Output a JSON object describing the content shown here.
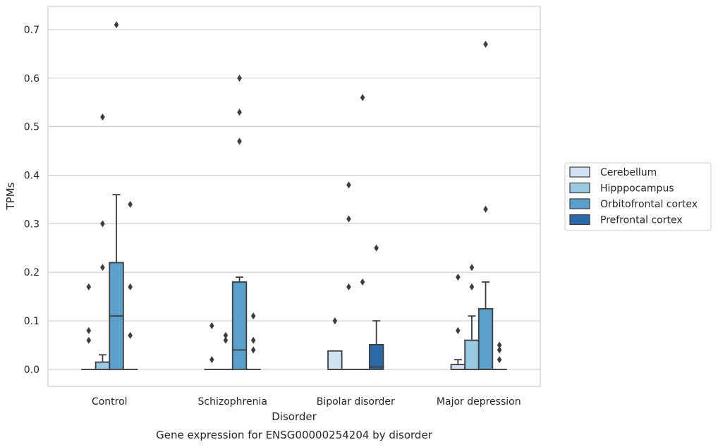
{
  "chart_data": {
    "type": "box",
    "title": "",
    "caption": "Gene expression for ENSG00000254204 by disorder",
    "xlabel": "Disorder",
    "ylabel": "TPMs",
    "ylim": [
      -0.035,
      0.748
    ],
    "yticks": [
      "0.0",
      "0.1",
      "0.2",
      "0.3",
      "0.4",
      "0.5",
      "0.6",
      "0.7"
    ],
    "grid": "horizontal",
    "legend_placement": "right",
    "categories": [
      "Control",
      "Schizophrenia",
      "Bipolar disorder",
      "Major depression"
    ],
    "series": [
      {
        "name": "Cerebellum",
        "color": "#d1e2f2",
        "boxes": [
          {
            "category": "Control",
            "q1": 0.0,
            "median": 0.0,
            "q3": 0.0,
            "whisker_low": 0.0,
            "whisker_high": 0.0,
            "outliers": [
              0.17,
              0.08,
              0.06
            ]
          },
          {
            "category": "Schizophrenia",
            "q1": 0.0,
            "median": 0.0,
            "q3": 0.0,
            "whisker_low": 0.0,
            "whisker_high": 0.0,
            "outliers": [
              0.09,
              0.02
            ]
          },
          {
            "category": "Bipolar disorder",
            "q1": 0.0,
            "median": 0.0,
            "q3": 0.038,
            "whisker_low": 0.0,
            "whisker_high": 0.038,
            "outliers": [
              0.1
            ]
          },
          {
            "category": "Major depression",
            "q1": 0.0,
            "median": 0.0,
            "q3": 0.01,
            "whisker_low": 0.0,
            "whisker_high": 0.02,
            "outliers": [
              0.19,
              0.08
            ]
          }
        ]
      },
      {
        "name": "Hipppocampus",
        "color": "#9ac8e0",
        "boxes": [
          {
            "category": "Control",
            "q1": 0.0,
            "median": 0.0,
            "q3": 0.015,
            "whisker_low": 0.0,
            "whisker_high": 0.03,
            "outliers": [
              0.52,
              0.3,
              0.21
            ]
          },
          {
            "category": "Schizophrenia",
            "q1": 0.0,
            "median": 0.0,
            "q3": 0.0,
            "whisker_low": 0.0,
            "whisker_high": 0.0,
            "outliers": [
              0.07,
              0.06
            ]
          },
          {
            "category": "Bipolar disorder",
            "q1": 0.0,
            "median": 0.0,
            "q3": 0.0,
            "whisker_low": 0.0,
            "whisker_high": 0.0,
            "outliers": [
              0.38,
              0.31,
              0.17
            ]
          },
          {
            "category": "Major depression",
            "q1": 0.0,
            "median": 0.0,
            "q3": 0.06,
            "whisker_low": 0.0,
            "whisker_high": 0.11,
            "outliers": [
              0.21,
              0.17
            ]
          }
        ]
      },
      {
        "name": "Orbitofrontal cortex",
        "color": "#5b9fcb",
        "boxes": [
          {
            "category": "Control",
            "q1": 0.0,
            "median": 0.11,
            "q3": 0.22,
            "whisker_low": 0.0,
            "whisker_high": 0.36,
            "outliers": [
              0.71
            ]
          },
          {
            "category": "Schizophrenia",
            "q1": 0.0,
            "median": 0.04,
            "q3": 0.18,
            "whisker_low": 0.0,
            "whisker_high": 0.19,
            "outliers": [
              0.6,
              0.53,
              0.47
            ]
          },
          {
            "category": "Bipolar disorder",
            "q1": 0.0,
            "median": 0.0,
            "q3": 0.0,
            "whisker_low": 0.0,
            "whisker_high": 0.0,
            "outliers": [
              0.56,
              0.18
            ]
          },
          {
            "category": "Major depression",
            "q1": 0.0,
            "median": 0.0,
            "q3": 0.125,
            "whisker_low": 0.0,
            "whisker_high": 0.18,
            "outliers": [
              0.67,
              0.33
            ]
          }
        ]
      },
      {
        "name": "Prefrontal cortex",
        "color": "#2a6aa8",
        "boxes": [
          {
            "category": "Control",
            "q1": 0.0,
            "median": 0.0,
            "q3": 0.0,
            "whisker_low": 0.0,
            "whisker_high": 0.0,
            "outliers": [
              0.34,
              0.17,
              0.07
            ]
          },
          {
            "category": "Schizophrenia",
            "q1": 0.0,
            "median": 0.0,
            "q3": 0.0,
            "whisker_low": 0.0,
            "whisker_high": 0.0,
            "outliers": [
              0.11,
              0.06,
              0.04
            ]
          },
          {
            "category": "Bipolar disorder",
            "q1": 0.0,
            "median": 0.005,
            "q3": 0.051,
            "whisker_low": 0.0,
            "whisker_high": 0.1,
            "outliers": [
              0.25
            ]
          },
          {
            "category": "Major depression",
            "q1": 0.0,
            "median": 0.0,
            "q3": 0.0,
            "whisker_low": 0.0,
            "whisker_high": 0.0,
            "outliers": [
              0.05,
              0.04,
              0.02
            ]
          }
        ]
      }
    ]
  }
}
